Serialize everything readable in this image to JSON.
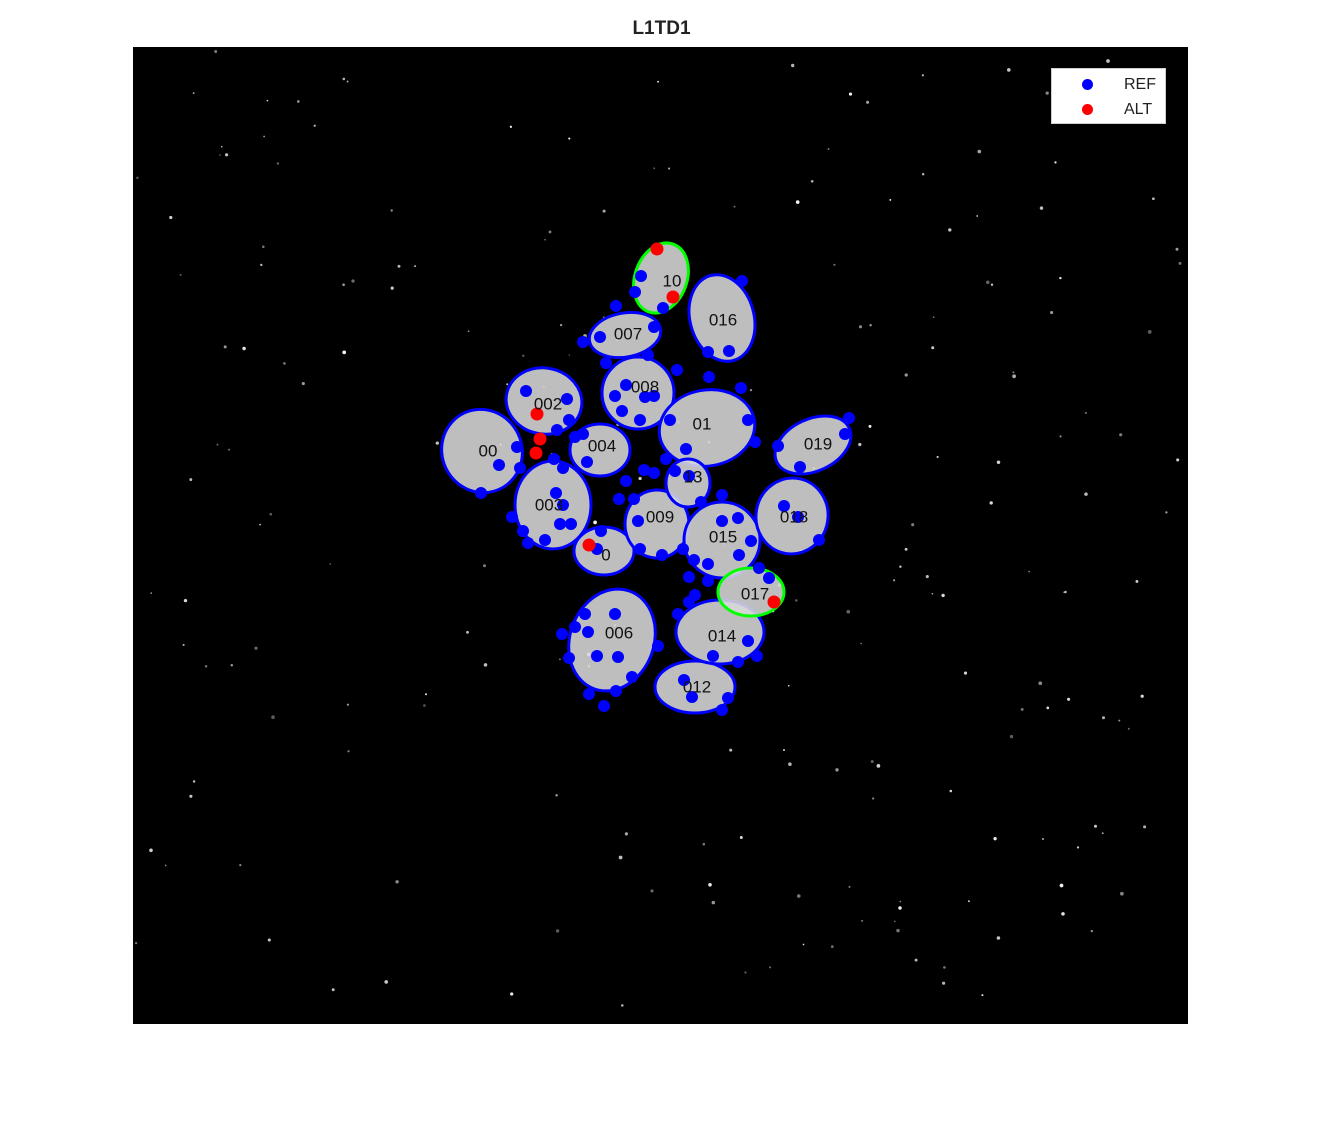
{
  "figure": {
    "title": "L1TD1",
    "background_color": "#000000",
    "ref_color": "#0000ff",
    "alt_color": "#ff0000",
    "selected_outline_color": "#00ff00",
    "outline_color": "#0000ff"
  },
  "legend": {
    "placement": "top-right",
    "items": [
      {
        "label": "REF",
        "color": "#0000ff"
      },
      {
        "label": "ALT",
        "color": "#ff0000"
      }
    ]
  },
  "cells": [
    {
      "label": "001"
    },
    {
      "label": "002"
    },
    {
      "label": "003"
    },
    {
      "label": "004"
    },
    {
      "label": "005"
    },
    {
      "label": "006"
    },
    {
      "label": "007"
    },
    {
      "label": "008"
    },
    {
      "label": "009"
    },
    {
      "label": "010"
    },
    {
      "label": "011"
    },
    {
      "label": "012"
    },
    {
      "label": "013"
    },
    {
      "label": "014"
    },
    {
      "label": "015"
    },
    {
      "label": "016"
    },
    {
      "label": "017"
    },
    {
      "label": "018"
    },
    {
      "label": "019"
    }
  ],
  "cell_labels_shown": [
    "00",
    "002",
    "003",
    "004",
    "0",
    "006",
    "007",
    "008",
    "009",
    "10",
    "01",
    "012",
    "13",
    "014",
    "015",
    "016",
    "017",
    "018",
    "019"
  ]
}
